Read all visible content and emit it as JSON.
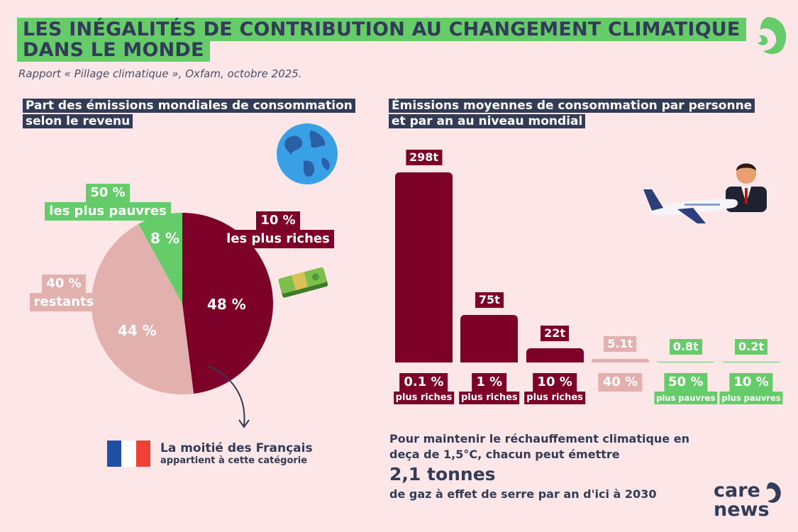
{
  "header": {
    "title": "LES INÉGALITÉS DE CONTRIBUTION AU CHANGEMENT CLIMATIQUE DANS LE MONDE",
    "subtitle": "Rapport « Pillage climatique », Oxfam, octobre 2025."
  },
  "colors": {
    "background": "#fce6e8",
    "green": "#66cc6a",
    "navy": "#323c56",
    "maroon": "#7d0029",
    "pink": "#e2b0ad"
  },
  "chart_data": [
    {
      "type": "pie",
      "title": "Part des émissions mondiales de consommation selon le revenu",
      "slices": [
        {
          "group": "10 %",
          "label": "les plus riches",
          "value": 48,
          "value_label": "48 %",
          "color": "#7d0029"
        },
        {
          "group": "40 %",
          "label": "restants",
          "value": 44,
          "value_label": "44 %",
          "color": "#e2b0ad"
        },
        {
          "group": "50 %",
          "label": "les plus pauvres",
          "value": 8,
          "value_label": "8 %",
          "color": "#66cc6a"
        }
      ]
    },
    {
      "type": "bar",
      "title": "Émissions moyennes de consommation par personne et par an au niveau mondial",
      "unit": "t",
      "categories": [
        {
          "pct": "0.1 %",
          "sub": "plus riches"
        },
        {
          "pct": "1 %",
          "sub": "plus riches"
        },
        {
          "pct": "10 %",
          "sub": "plus riches"
        },
        {
          "pct": "40 %",
          "sub": ""
        },
        {
          "pct": "50  %",
          "sub": "plus pauvres"
        },
        {
          "pct": "10 %",
          "sub": "plus pauvres"
        }
      ],
      "values": [
        298,
        75,
        22,
        5.1,
        0.8,
        0.2
      ],
      "value_labels": [
        "298t",
        "75t",
        "22t",
        "5.1t",
        "0.8t",
        "0.2t"
      ],
      "colors": [
        "#7d0029",
        "#7d0029",
        "#7d0029",
        "#e2b0ad",
        "#66cc6a",
        "#66cc6a"
      ]
    }
  ],
  "france_note": {
    "line1": "La moitié des Français",
    "line2": "appartient à cette catégorie"
  },
  "target_note": {
    "line1": "Pour maintenir le réchauffement climatique en",
    "line2": "deça de 1,5°C, chacun peut émettre",
    "amount": "2,1 tonnes",
    "line3": "de gaz à effet de serre par an d'ici à 2030"
  },
  "logo": {
    "line1": "care",
    "line2": "news"
  }
}
